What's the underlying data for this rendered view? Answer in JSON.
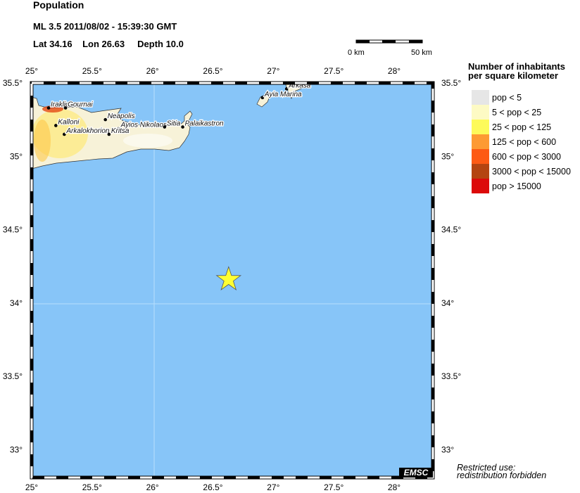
{
  "header": {
    "title": "Population",
    "event": "ML 3.5  2011/08/02 - 15:39:30 GMT",
    "lat_label": "Lat 34.16",
    "lon_label": "Lon 26.63",
    "depth_label": "Depth  10.0"
  },
  "scale_bar": {
    "start": "0 km",
    "end": "50 km"
  },
  "map": {
    "lon_range": [
      25,
      28.32
    ],
    "lat_range": [
      32.8,
      35.5
    ],
    "lon_ticks": [
      "25°",
      "25.5°",
      "26°",
      "26.5°",
      "27°",
      "27.5°",
      "28°"
    ],
    "lat_ticks": [
      "35.5°",
      "35°",
      "34.5°",
      "34°",
      "33.5°",
      "33°"
    ],
    "sea_color": "#87c5f8",
    "epicenter": {
      "lat": 34.16,
      "lon": 26.63,
      "icon": "star-icon",
      "color": "#ffff33"
    },
    "cities": [
      {
        "name": "Iraklio",
        "lon": 25.14,
        "lat": 35.33
      },
      {
        "name": "Gournai",
        "lon": 25.28,
        "lat": 35.33
      },
      {
        "name": "Kalloni",
        "lon": 25.2,
        "lat": 35.21
      },
      {
        "name": "Arkalokhorion",
        "lon": 25.27,
        "lat": 35.15
      },
      {
        "name": "Neapolis",
        "lon": 25.61,
        "lat": 35.25
      },
      {
        "name": "Ayios Nikolaos",
        "lon": 25.72,
        "lat": 35.19
      },
      {
        "name": "Kritsa",
        "lon": 25.64,
        "lat": 35.15
      },
      {
        "name": "Sitia",
        "lon": 26.1,
        "lat": 35.2
      },
      {
        "name": "Palaikastron",
        "lon": 26.25,
        "lat": 35.2
      },
      {
        "name": "Ayia Marina",
        "lon": 26.91,
        "lat": 35.4
      },
      {
        "name": "Arkasa",
        "lon": 27.11,
        "lat": 35.46
      }
    ],
    "logo": "EMSC"
  },
  "legend": {
    "title_line1": "Number of inhabitants",
    "title_line2": "per square kilometer",
    "items": [
      {
        "label": "pop < 5",
        "color": "#e6e6e6"
      },
      {
        "label": "5 < pop < 25",
        "color": "#fdfac4"
      },
      {
        "label": "25 < pop < 125",
        "color": "#fdfa5a"
      },
      {
        "label": "125 < pop < 600",
        "color": "#fd9a33"
      },
      {
        "label": "600 < pop < 3000",
        "color": "#fd5a14"
      },
      {
        "label": "3000 < pop < 15000",
        "color": "#b44411"
      },
      {
        "label": "pop > 15000",
        "color": "#dc0a0a"
      }
    ]
  },
  "notice": {
    "line1": "Restricted use:",
    "line2": "redistribution forbidden"
  }
}
